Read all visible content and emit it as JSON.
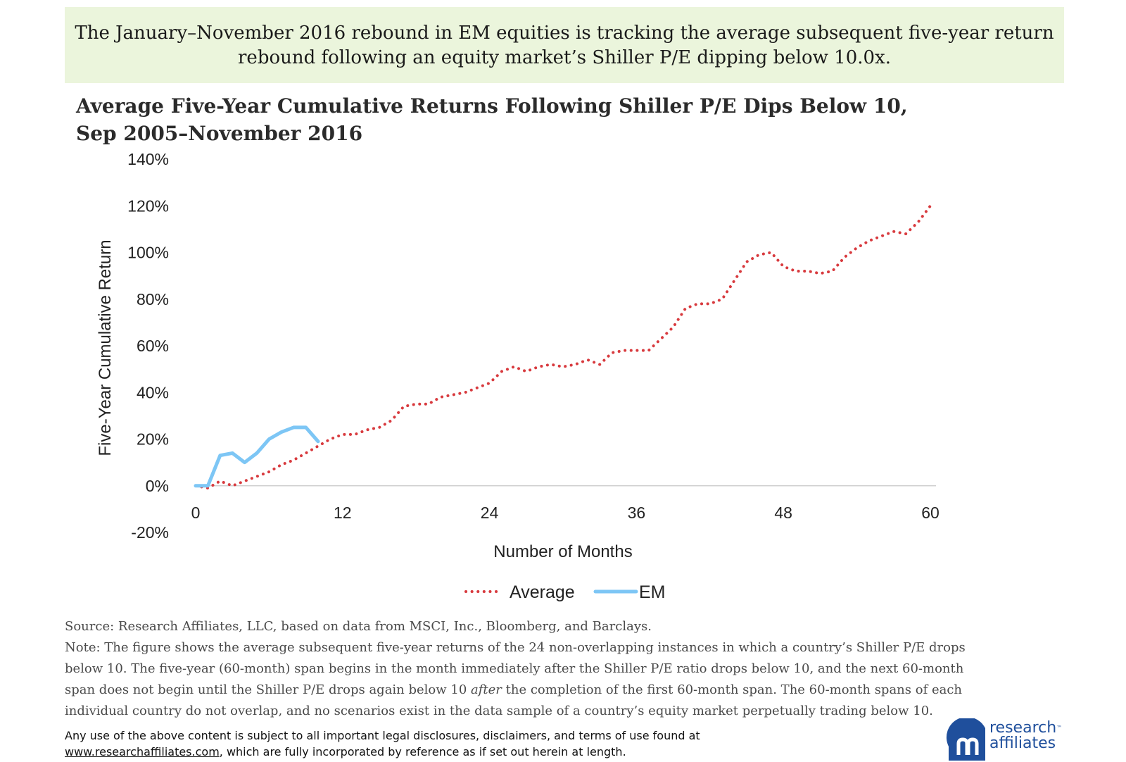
{
  "banner": {
    "line1": "The January–November 2016 rebound in EM equities is tracking the average subsequent five-year return",
    "line2": "rebound following an equity market’s Shiller P/E dipping below 10.0x."
  },
  "chart_data": {
    "type": "line",
    "title": "Average Five-Year Cumulative Returns Following Shiller P/E Dips Below 10,",
    "subtitle": "Sep 2005–November 2016",
    "xlabel": "Number of Months",
    "ylabel": "Five-Year Cumulative Return",
    "xlim": [
      0,
      60
    ],
    "ylim": [
      -20,
      140
    ],
    "x_ticks": [
      0,
      12,
      24,
      36,
      48,
      60
    ],
    "y_ticks": [
      140,
      120,
      100,
      80,
      60,
      40,
      20,
      0,
      -20
    ],
    "y_tick_labels": [
      "140%",
      "120%",
      "100%",
      "80%",
      "60%",
      "40%",
      "20%",
      "0%",
      "-20%"
    ],
    "legend_position": "bottom-center",
    "series": [
      {
        "name": "Average",
        "color": "#d83a3e",
        "style": "dotted",
        "x": [
          0,
          1,
          2,
          3,
          4,
          5,
          6,
          7,
          8,
          9,
          10,
          11,
          12,
          13,
          14,
          15,
          16,
          17,
          18,
          19,
          20,
          21,
          22,
          23,
          24,
          25,
          26,
          27,
          28,
          29,
          30,
          31,
          32,
          33,
          34,
          35,
          36,
          37,
          38,
          39,
          40,
          41,
          42,
          43,
          44,
          45,
          46,
          47,
          48,
          49,
          50,
          51,
          52,
          53,
          54,
          55,
          56,
          57,
          58,
          59,
          60
        ],
        "values": [
          0,
          -1,
          2,
          0,
          2,
          4,
          6,
          9,
          11,
          14,
          17,
          20,
          22,
          22,
          24,
          25,
          28,
          34,
          35,
          35,
          38,
          39,
          40,
          42,
          44,
          49,
          51,
          49,
          51,
          52,
          51,
          52,
          54,
          52,
          57,
          58,
          58,
          58,
          63,
          68,
          76,
          78,
          78,
          80,
          88,
          96,
          99,
          100,
          94,
          92,
          92,
          91,
          92,
          98,
          102,
          105,
          107,
          109,
          108,
          113,
          120
        ]
      },
      {
        "name": "EM",
        "color": "#7dc6f5",
        "style": "solid",
        "x": [
          0,
          1,
          2,
          3,
          4,
          5,
          6,
          7,
          8,
          9,
          10
        ],
        "values": [
          0,
          0,
          13,
          14,
          10,
          14,
          20,
          23,
          25,
          25,
          19
        ]
      }
    ]
  },
  "notes": {
    "source": "Source: Research Affiliates, LLC, based on data from MSCI, Inc., Bloomberg, and Barclays.",
    "note_part1": "Note: The figure shows the average subsequent five-year returns of the 24 non-overlapping instances in which a country’s Shiller P/E drops below 10. The five-year (60-month) span begins in the month immediately after the Shiller P/E ratio drops below 10, and the next 60-month span does not begin until the Shiller P/E drops again below 10 ",
    "note_emphasis": "after",
    "note_part2": " the completion of the first 60-month span. The 60-month spans of each individual country do not overlap, and no scenarios exist in the data sample of a country’s equity market perpetually trading below 10."
  },
  "disclaimer": {
    "line1": "Any use of the above content is subject to all important legal disclosures, disclaimers, and terms of use found at",
    "link": "www.researchaffiliates.com",
    "line2_rest": ", which are fully incorporated by reference as if set out herein at length."
  },
  "logo": {
    "line1": "research",
    "tm": "™",
    "line2": "affiliates"
  }
}
